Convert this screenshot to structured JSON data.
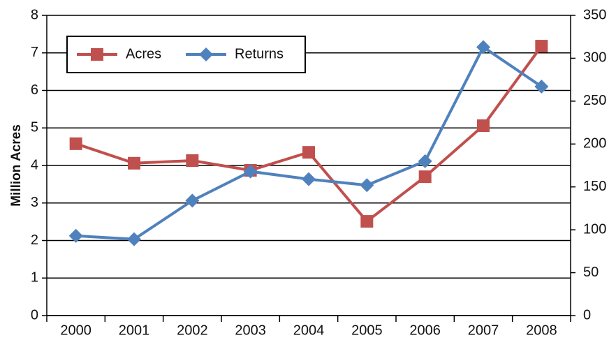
{
  "chart_data": {
    "type": "line",
    "y_label": "Million Acres",
    "categories": [
      "2000",
      "2001",
      "2002",
      "2003",
      "2004",
      "2005",
      "2006",
      "2007",
      "2008"
    ],
    "series": [
      {
        "name": "Acres",
        "color": "#c0504d",
        "marker": "square",
        "values": [
          4.58,
          4.06,
          4.13,
          3.87,
          4.35,
          2.51,
          3.7,
          5.06,
          7.18
        ]
      },
      {
        "name": "Returns",
        "color": "#4f81bd",
        "marker": "diamond",
        "axis": "y2",
        "values": [
          93,
          89,
          134,
          168,
          159,
          152,
          180,
          313,
          267
        ]
      }
    ],
    "ylim": [
      0,
      8
    ],
    "yticks": [
      0,
      1,
      2,
      3,
      4,
      5,
      6,
      7,
      8
    ],
    "y2lim": [
      0,
      350
    ],
    "y2ticks": [
      0,
      50,
      100,
      150,
      200,
      250,
      300,
      350
    ],
    "grid": true,
    "legend": "upper left"
  }
}
